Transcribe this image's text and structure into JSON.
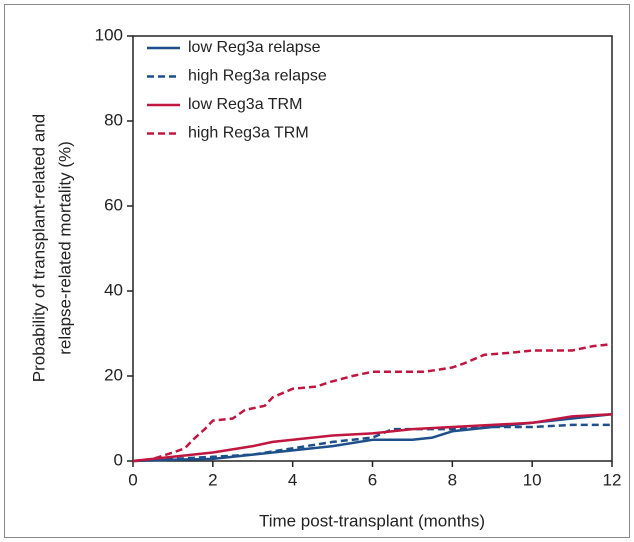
{
  "chart_data": {
    "type": "line",
    "x_label": "Time post-transplant (months)",
    "y_label": [
      "Probability of transplant-related and",
      "relapse-related mortality (%)"
    ],
    "xlim": [
      0,
      12
    ],
    "xticks": [
      0,
      2,
      4,
      6,
      8,
      10,
      12
    ],
    "ylim": [
      0,
      100
    ],
    "yticks": [
      0,
      20,
      40,
      60,
      80,
      100
    ],
    "legend": "upper left",
    "series": [
      {
        "name": "low Reg3a relapse",
        "color": "#1d4f8a",
        "dash": false,
        "x": [
          0,
          1,
          2,
          3,
          4,
          5,
          6,
          7,
          7.5,
          8,
          9,
          10,
          11,
          12
        ],
        "values": [
          0,
          0.3,
          0.5,
          1.5,
          2.5,
          3.5,
          5,
          5,
          5.5,
          7,
          8,
          9,
          10,
          11
        ]
      },
      {
        "name": "high Reg3a relapse",
        "color": "#1d4f8a",
        "dash": true,
        "x": [
          0,
          1,
          2,
          3,
          4,
          5,
          6,
          6.5,
          7,
          8,
          9,
          10,
          11,
          12
        ],
        "values": [
          0,
          0.5,
          1,
          1.5,
          3,
          4.5,
          5.5,
          7.5,
          7.5,
          7.5,
          8,
          8,
          8.5,
          8.5
        ]
      },
      {
        "name": "low Reg3a TRM",
        "color": "#c0163f",
        "dash": false,
        "x": [
          0,
          1,
          2,
          3,
          3.5,
          4,
          5,
          6,
          7,
          8,
          9,
          10,
          11,
          12
        ],
        "values": [
          0,
          1,
          2,
          3.5,
          4.5,
          5,
          6,
          6.5,
          7.5,
          8,
          8.5,
          9,
          10.5,
          11
        ]
      },
      {
        "name": "high Reg3a TRM",
        "color": "#c0163f",
        "dash": true,
        "x": [
          0,
          0.5,
          1,
          1.3,
          1.5,
          1.8,
          2,
          2.5,
          2.8,
          3.3,
          3.5,
          4,
          4.6,
          4.9,
          5.5,
          6,
          7.3,
          8,
          8.3,
          8.8,
          9.5,
          10,
          11,
          11.5,
          12
        ],
        "values": [
          0,
          0.5,
          2,
          3,
          5,
          7.5,
          9.5,
          10,
          12,
          13,
          15,
          17,
          17.5,
          18.5,
          20,
          21,
          21,
          22,
          23,
          25,
          25.5,
          26,
          26,
          27,
          27.5
        ]
      }
    ]
  }
}
